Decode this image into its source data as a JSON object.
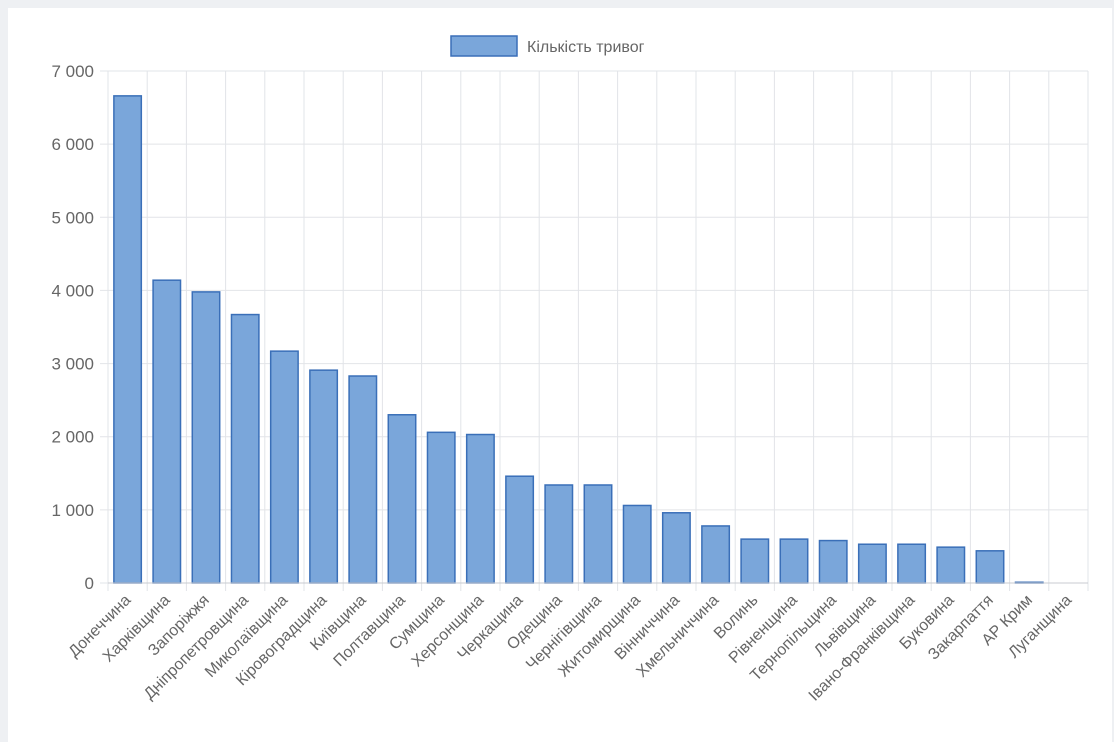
{
  "chart_data": {
    "type": "bar",
    "legend": {
      "label": "Кількість тривог",
      "position": "top-center"
    },
    "series": [
      {
        "name": "Кількість тривог",
        "values": [
          6660,
          4140,
          3980,
          3670,
          3170,
          2910,
          2830,
          2300,
          2060,
          2030,
          1460,
          1340,
          1340,
          1060,
          960,
          780,
          600,
          600,
          580,
          530,
          530,
          490,
          440,
          10,
          0
        ]
      }
    ],
    "categories": [
      "Донеччина",
      "Харківщина",
      "Запоріжжя",
      "Дніпропетровщина",
      "Миколаївщина",
      "Кіровоградщина",
      "Київщина",
      "Полтавщина",
      "Сумщина",
      "Херсонщина",
      "Черкащина",
      "Одещина",
      "Чернігівщина",
      "Житомирщина",
      "Вінниччина",
      "Хмельниччина",
      "Волинь",
      "Рівненщина",
      "Тернопільщина",
      "Львівщина",
      "Івано-Франківщина",
      "Буковина",
      "Закарпаття",
      "АР Крим",
      "Луганщина"
    ],
    "ylim": [
      0,
      7000
    ],
    "yticks": [
      0,
      1000,
      2000,
      3000,
      4000,
      5000,
      6000,
      7000
    ],
    "ytick_labels": [
      "0",
      "1 000",
      "2 000",
      "3 000",
      "4 000",
      "5 000",
      "6 000",
      "7 000"
    ],
    "grid": true,
    "colors": {
      "bar_fill": "#7aa6da",
      "bar_stroke": "#3a6fb8",
      "grid": "#e2e4e8",
      "text": "#666666"
    }
  }
}
